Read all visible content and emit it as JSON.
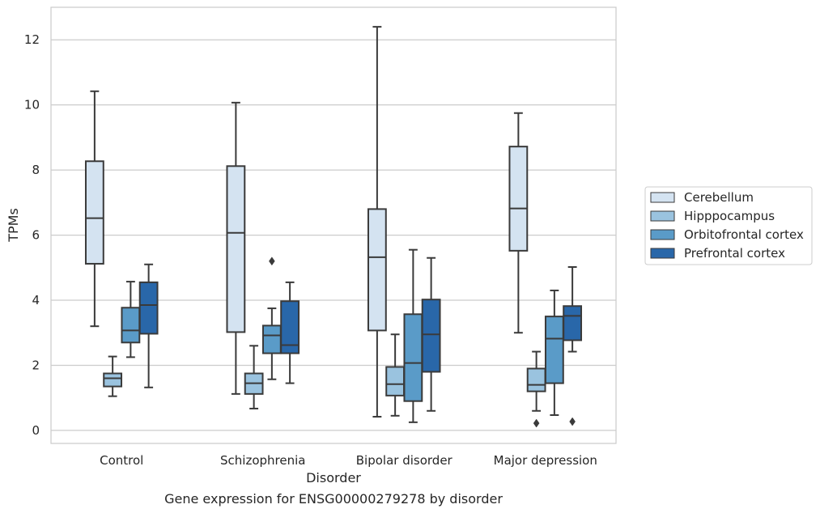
{
  "chart_data": {
    "type": "boxplot",
    "title": "Gene expression for ENSG00000279278 by disorder",
    "xlabel": "Disorder",
    "ylabel": "TPMs",
    "ylim": [
      -0.4,
      13
    ],
    "yticks": [
      0,
      2,
      4,
      6,
      8,
      10,
      12
    ],
    "grid": "horizontal",
    "legend_position": "right",
    "categories": [
      "Control",
      "Schizophrenia",
      "Bipolar disorder",
      "Major depression"
    ],
    "series": [
      {
        "name": "Cerebellum",
        "color": "#d4e3f1",
        "boxes": [
          {
            "whislo": 3.2,
            "q1": 5.12,
            "med": 6.52,
            "q3": 8.27,
            "whishi": 10.42,
            "fliers": []
          },
          {
            "whislo": 1.12,
            "q1": 3.02,
            "med": 6.07,
            "q3": 8.12,
            "whishi": 10.07,
            "fliers": []
          },
          {
            "whislo": 0.42,
            "q1": 3.07,
            "med": 5.32,
            "q3": 6.8,
            "whishi": 12.4,
            "fliers": []
          },
          {
            "whislo": 3.0,
            "q1": 5.52,
            "med": 6.82,
            "q3": 8.72,
            "whishi": 9.75,
            "fliers": []
          }
        ]
      },
      {
        "name": "Hipppocampus",
        "color": "#9ac3df",
        "boxes": [
          {
            "whislo": 1.05,
            "q1": 1.35,
            "med": 1.6,
            "q3": 1.75,
            "whishi": 2.27,
            "fliers": []
          },
          {
            "whislo": 0.67,
            "q1": 1.12,
            "med": 1.45,
            "q3": 1.75,
            "whishi": 2.6,
            "fliers": []
          },
          {
            "whislo": 0.45,
            "q1": 1.07,
            "med": 1.42,
            "q3": 1.95,
            "whishi": 2.95,
            "fliers": []
          },
          {
            "whislo": 0.6,
            "q1": 1.2,
            "med": 1.4,
            "q3": 1.9,
            "whishi": 2.42,
            "fliers": [
              0.22
            ]
          }
        ]
      },
      {
        "name": "Orbitofrontal cortex",
        "color": "#5a9bc8",
        "boxes": [
          {
            "whislo": 2.25,
            "q1": 2.7,
            "med": 3.07,
            "q3": 3.77,
            "whishi": 4.57,
            "fliers": []
          },
          {
            "whislo": 1.57,
            "q1": 2.37,
            "med": 2.92,
            "q3": 3.22,
            "whishi": 3.75,
            "fliers": [
              5.2
            ]
          },
          {
            "whislo": 0.25,
            "q1": 0.9,
            "med": 2.07,
            "q3": 3.57,
            "whishi": 5.55,
            "fliers": []
          },
          {
            "whislo": 0.47,
            "q1": 1.45,
            "med": 2.82,
            "q3": 3.5,
            "whishi": 4.3,
            "fliers": []
          }
        ]
      },
      {
        "name": "Prefrontal cortex",
        "color": "#2967a9",
        "boxes": [
          {
            "whislo": 1.32,
            "q1": 2.97,
            "med": 3.85,
            "q3": 4.55,
            "whishi": 5.1,
            "fliers": []
          },
          {
            "whislo": 1.45,
            "q1": 2.37,
            "med": 2.62,
            "q3": 3.97,
            "whishi": 4.55,
            "fliers": []
          },
          {
            "whislo": 0.6,
            "q1": 1.8,
            "med": 2.95,
            "q3": 4.02,
            "whishi": 5.3,
            "fliers": []
          },
          {
            "whislo": 2.42,
            "q1": 2.77,
            "med": 3.52,
            "q3": 3.82,
            "whishi": 5.02,
            "fliers": [
              0.27
            ]
          }
        ]
      }
    ]
  }
}
